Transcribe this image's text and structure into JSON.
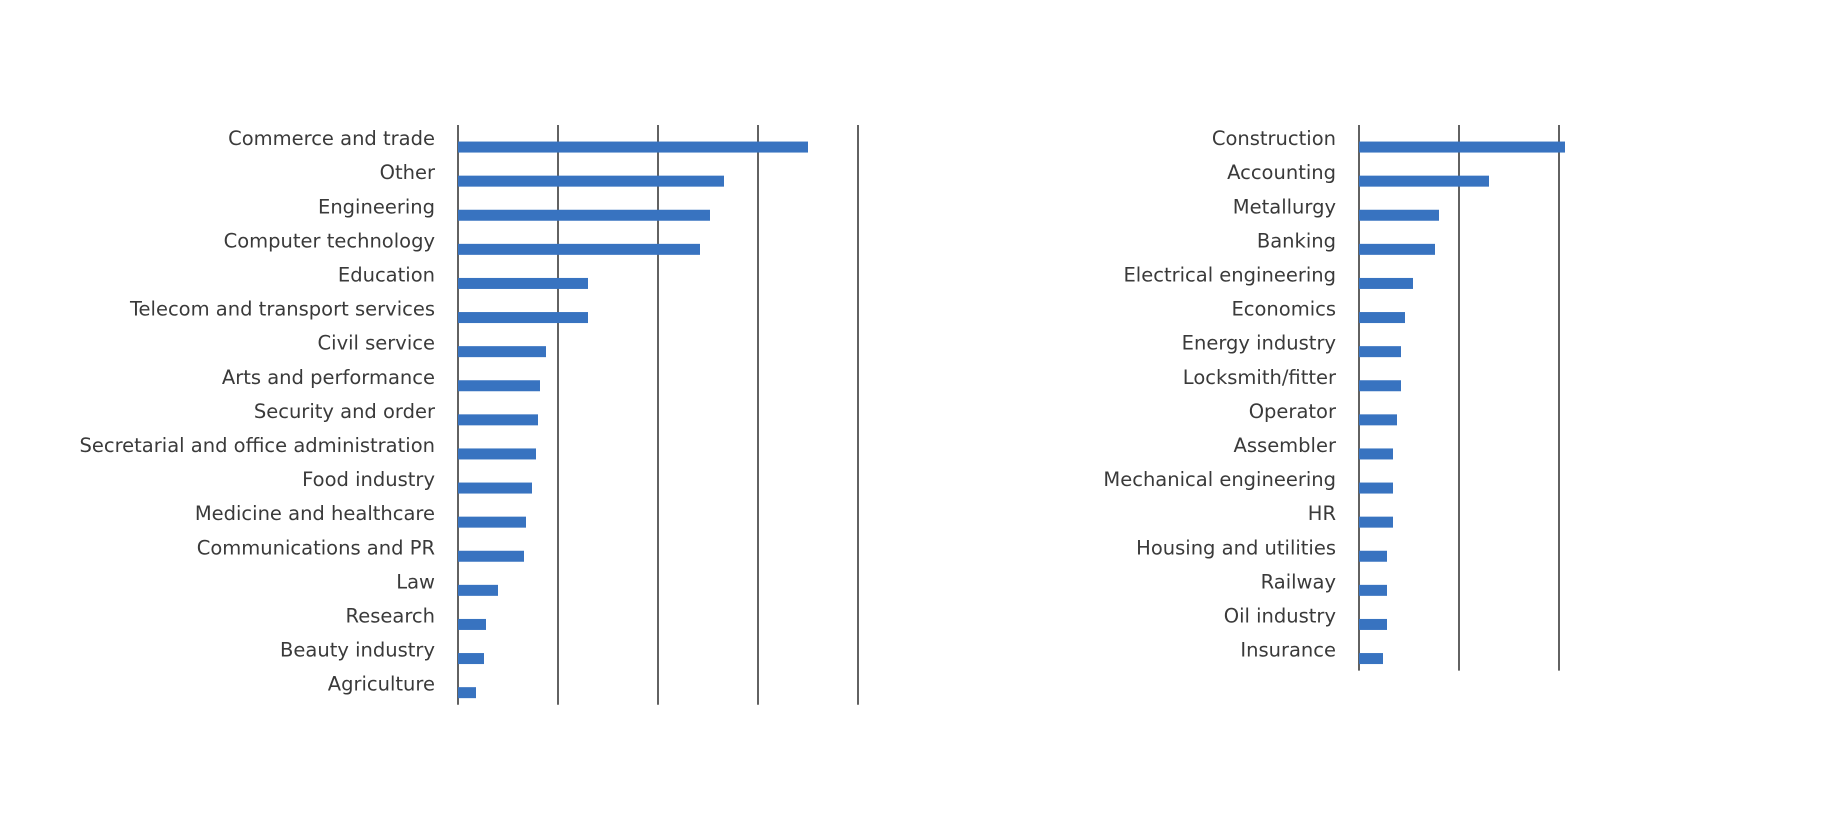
{
  "colors": {
    "bar": "#3873c0",
    "gridline": "#1f1f1f",
    "label": "#3a3a3a"
  },
  "chart_data": [
    {
      "type": "bar",
      "orientation": "horizontal",
      "title": "",
      "xlabel": "",
      "ylabel": "",
      "xlim": [
        0,
        20
      ],
      "grid": true,
      "grid_step": 5,
      "tick_labels_shown": false,
      "categories": [
        "Commerce and trade",
        "Other",
        "Engineering",
        "Computer technology",
        "Education",
        "Telecom and transport services",
        "Civil service",
        "Arts and performance",
        "Security and order",
        "Secretarial and office administration",
        "Food industry",
        "Medicine and healthcare",
        "Communications and PR",
        "Law",
        "Research",
        "Beauty industry",
        "Agriculture"
      ],
      "values": [
        17.5,
        13.3,
        12.6,
        12.1,
        6.5,
        6.5,
        4.4,
        4.1,
        4.0,
        3.9,
        3.7,
        3.4,
        3.3,
        2.0,
        1.4,
        1.3,
        0.9
      ]
    },
    {
      "type": "bar",
      "orientation": "horizontal",
      "title": "",
      "xlabel": "",
      "ylabel": "",
      "xlim": [
        0,
        10
      ],
      "grid": true,
      "grid_step": 5,
      "tick_labels_shown": false,
      "categories": [
        "Construction",
        "Accounting",
        "Metallurgy",
        "Banking",
        "Electrical engineering",
        "Economics",
        "Energy industry",
        "Locksmith/fitter",
        "Operator",
        "Assembler",
        "Mechanical engineering",
        "HR",
        "Housing and utilities",
        "Railway",
        "Oil industry",
        "Insurance"
      ],
      "values": [
        10.3,
        6.5,
        4.0,
        3.8,
        2.7,
        2.3,
        2.1,
        2.1,
        1.9,
        1.7,
        1.7,
        1.7,
        1.4,
        1.4,
        1.4,
        1.2
      ]
    }
  ]
}
